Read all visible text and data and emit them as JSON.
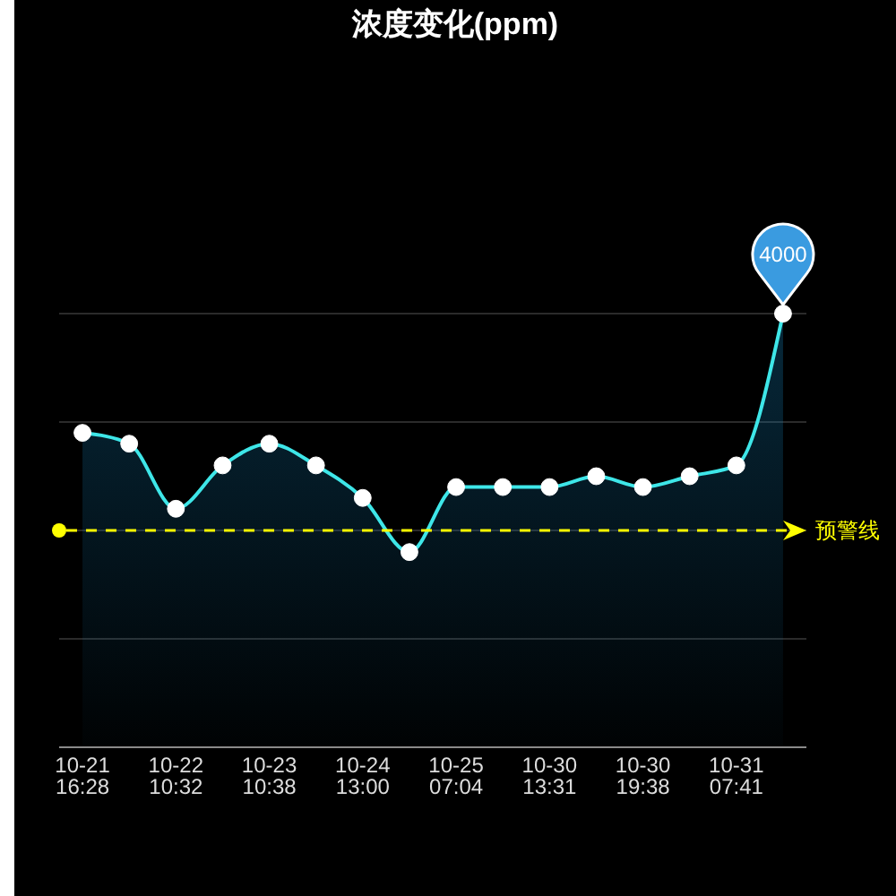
{
  "chart_data": {
    "type": "area",
    "title": "浓度变化(ppm)",
    "categories": [
      "10-21\n16:28",
      null,
      "10-22\n10:32",
      null,
      "10-23\n10:38",
      null,
      "10-24\n13:00",
      null,
      "10-25\n07:04",
      null,
      "10-30\n13:31",
      null,
      "10-30\n19:38",
      null,
      "10-31\n07:41",
      null
    ],
    "series": [
      {
        "color": "#3ee6e8",
        "values": [
          2900,
          2800,
          2200,
          2600,
          2800,
          2600,
          2300,
          1800,
          2400,
          2400,
          2400,
          2500,
          2400,
          2500,
          2600,
          4000
        ],
        "value_labels": [
          null,
          null,
          null,
          null,
          null,
          null,
          null,
          null,
          null,
          null,
          null,
          null,
          null,
          null,
          null,
          "4000"
        ]
      }
    ],
    "ylim": [
      0,
      4000
    ],
    "yticks": [
      {
        "value": 0,
        "label": null
      },
      {
        "value": 1000,
        "label": null
      },
      {
        "value": 2000,
        "label": null
      },
      {
        "value": 3000,
        "label": null
      },
      {
        "value": 4000,
        "label": null
      }
    ],
    "tick_labels": "x",
    "grid": "y",
    "marker": "circle",
    "line_style": "solid",
    "ref_lines": [
      {
        "axis": "y",
        "value": 2000,
        "label": "预警线",
        "color": "#ffff00",
        "line_style": "dashed"
      }
    ]
  }
}
